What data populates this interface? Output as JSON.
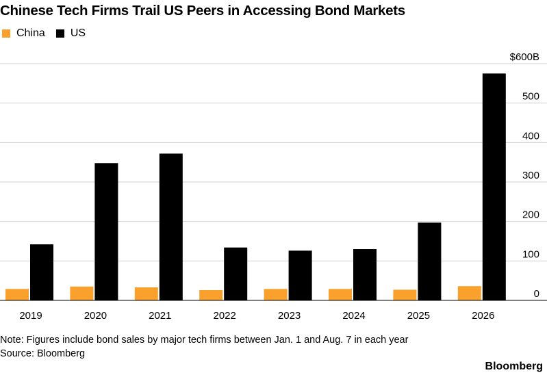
{
  "chart_data": {
    "type": "bar",
    "title": "Chinese Tech Firms Trail US Peers in Accessing Bond Markets",
    "categories": [
      "2019",
      "2020",
      "2021",
      "2022",
      "2023",
      "2024",
      "2025",
      "2026"
    ],
    "series": [
      {
        "name": "China",
        "color": "#f9a12c",
        "values": [
          29,
          35,
          33,
          26,
          29,
          29,
          27,
          36
        ]
      },
      {
        "name": "US",
        "color": "#000000",
        "values": [
          142,
          348,
          372,
          134,
          126,
          130,
          197,
          575
        ]
      }
    ],
    "ylim": [
      0,
      600
    ],
    "yticks": [
      0,
      100,
      200,
      300,
      400,
      500,
      600
    ],
    "ytick_labels": [
      "0",
      "100",
      "200",
      "300",
      "400",
      "500",
      "$600B"
    ],
    "ylabel": "",
    "xlabel": "",
    "grid": true,
    "legend": "top-left",
    "axis_position": "right"
  },
  "note": "Note: Figures include bond sales by major tech firms between Jan. 1 and Aug. 7 in each year",
  "source": "Source: Bloomberg",
  "brand": "Bloomberg"
}
